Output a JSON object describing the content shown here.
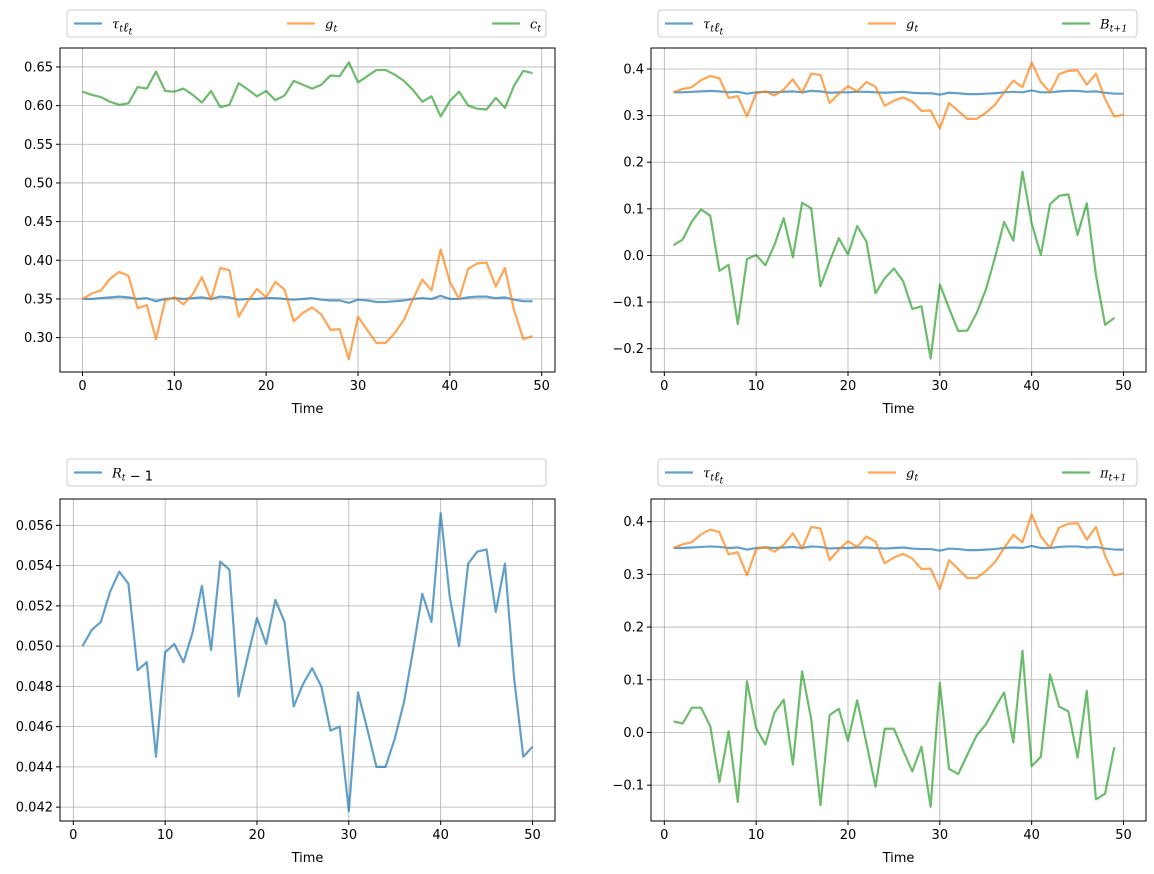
{
  "chart_data": [
    {
      "type": "line",
      "xlabel": "Time",
      "ylabel": "",
      "xlim": [
        -2.45,
        51.45
      ],
      "ylim": [
        0.2555,
        0.6745
      ],
      "xticks": [
        0,
        10,
        20,
        30,
        40,
        50
      ],
      "yticks": [
        0.3,
        0.35,
        0.4,
        0.45,
        0.5,
        0.55,
        0.6,
        0.65
      ],
      "ytick_decimals": 2,
      "grid": true,
      "legend": "above",
      "series": [
        {
          "name": "τtℓt",
          "color": "#1f77b4",
          "x_start": 0,
          "values": [
            0.35,
            0.35,
            0.351,
            0.352,
            0.353,
            0.352,
            0.35,
            0.351,
            0.347,
            0.35,
            0.351,
            0.35,
            0.351,
            0.352,
            0.35,
            0.353,
            0.352,
            0.349,
            0.35,
            0.35,
            0.351,
            0.351,
            0.35,
            0.349,
            0.35,
            0.351,
            0.349,
            0.348,
            0.348,
            0.345,
            0.349,
            0.348,
            0.346,
            0.346,
            0.347,
            0.348,
            0.35,
            0.351,
            0.35,
            0.354,
            0.35,
            0.35,
            0.352,
            0.353,
            0.353,
            0.351,
            0.352,
            0.349,
            0.347,
            0.347
          ]
        },
        {
          "name": "gt",
          "color": "#ff7f0e",
          "x_start": 0,
          "values": [
            0.35,
            0.357,
            0.361,
            0.376,
            0.385,
            0.38,
            0.338,
            0.342,
            0.298,
            0.348,
            0.352,
            0.343,
            0.356,
            0.378,
            0.349,
            0.39,
            0.387,
            0.327,
            0.347,
            0.363,
            0.352,
            0.372,
            0.362,
            0.321,
            0.332,
            0.339,
            0.33,
            0.31,
            0.311,
            0.272,
            0.327,
            0.31,
            0.293,
            0.293,
            0.306,
            0.323,
            0.35,
            0.375,
            0.361,
            0.414,
            0.372,
            0.35,
            0.389,
            0.396,
            0.397,
            0.366,
            0.39,
            0.335,
            0.298,
            0.302
          ]
        },
        {
          "name": "ct",
          "color": "#2ca02c",
          "x_start": 0,
          "values": [
            0.618,
            0.614,
            0.611,
            0.605,
            0.601,
            0.603,
            0.624,
            0.622,
            0.644,
            0.619,
            0.618,
            0.622,
            0.614,
            0.604,
            0.619,
            0.598,
            0.601,
            0.629,
            0.621,
            0.612,
            0.619,
            0.607,
            0.613,
            0.632,
            0.627,
            0.622,
            0.627,
            0.639,
            0.638,
            0.656,
            0.63,
            0.638,
            0.646,
            0.646,
            0.64,
            0.632,
            0.62,
            0.605,
            0.612,
            0.586,
            0.606,
            0.618,
            0.6,
            0.596,
            0.595,
            0.61,
            0.597,
            0.626,
            0.645,
            0.642
          ]
        }
      ]
    },
    {
      "type": "line",
      "xlabel": "Time",
      "ylabel": "",
      "xlim": [
        -1.45,
        52.45
      ],
      "ylim": [
        -0.25,
        0.445
      ],
      "xticks": [
        0,
        10,
        20,
        30,
        40,
        50
      ],
      "yticks": [
        -0.2,
        -0.1,
        0.0,
        0.1,
        0.2,
        0.3,
        0.4
      ],
      "ytick_decimals": 1,
      "grid": true,
      "legend": "above",
      "series": [
        {
          "name": "τtℓt",
          "color": "#1f77b4",
          "x_start": 1,
          "values": [
            0.35,
            0.35,
            0.351,
            0.352,
            0.353,
            0.352,
            0.35,
            0.351,
            0.347,
            0.35,
            0.351,
            0.35,
            0.351,
            0.352,
            0.35,
            0.353,
            0.352,
            0.349,
            0.35,
            0.35,
            0.351,
            0.351,
            0.35,
            0.349,
            0.35,
            0.351,
            0.349,
            0.348,
            0.348,
            0.345,
            0.349,
            0.348,
            0.346,
            0.346,
            0.347,
            0.348,
            0.35,
            0.351,
            0.35,
            0.354,
            0.35,
            0.35,
            0.352,
            0.353,
            0.353,
            0.351,
            0.352,
            0.349,
            0.347,
            0.347
          ]
        },
        {
          "name": "gt",
          "color": "#ff7f0e",
          "x_start": 1,
          "values": [
            0.35,
            0.357,
            0.361,
            0.376,
            0.385,
            0.38,
            0.338,
            0.342,
            0.298,
            0.348,
            0.352,
            0.343,
            0.356,
            0.378,
            0.349,
            0.39,
            0.387,
            0.327,
            0.347,
            0.363,
            0.352,
            0.372,
            0.362,
            0.321,
            0.332,
            0.339,
            0.33,
            0.31,
            0.311,
            0.272,
            0.327,
            0.31,
            0.293,
            0.293,
            0.306,
            0.323,
            0.35,
            0.375,
            0.361,
            0.414,
            0.372,
            0.35,
            0.389,
            0.396,
            0.397,
            0.366,
            0.39,
            0.335,
            0.298,
            0.302
          ]
        },
        {
          "name": "Bt+1",
          "color": "#2ca02c",
          "x_start": 1,
          "values": [
            0.022,
            0.034,
            0.073,
            0.099,
            0.085,
            -0.033,
            -0.02,
            -0.147,
            -0.008,
            0.001,
            -0.021,
            0.023,
            0.08,
            -0.004,
            0.113,
            0.101,
            -0.066,
            -0.013,
            0.037,
            0.002,
            0.063,
            0.03,
            -0.081,
            -0.049,
            -0.028,
            -0.055,
            -0.115,
            -0.109,
            -0.221,
            -0.062,
            -0.113,
            -0.162,
            -0.161,
            -0.124,
            -0.074,
            -0.005,
            0.072,
            0.032,
            0.18,
            0.069,
            0.001,
            0.11,
            0.128,
            0.131,
            0.044,
            0.112,
            -0.042,
            -0.149,
            -0.134
          ]
        }
      ]
    },
    {
      "type": "line",
      "xlabel": "Time",
      "ylabel": "",
      "xlim": [
        -1.45,
        52.45
      ],
      "ylim": [
        0.04131,
        0.05731
      ],
      "xticks": [
        0,
        10,
        20,
        30,
        40,
        50
      ],
      "yticks": [
        0.042,
        0.044,
        0.046,
        0.048,
        0.05,
        0.052,
        0.054,
        0.056
      ],
      "ytick_decimals": 3,
      "grid": true,
      "legend": "above",
      "series": [
        {
          "name": "Rt − 1",
          "color": "#1f77b4",
          "x_start": 1,
          "values": [
            0.05,
            0.0508,
            0.0512,
            0.0527,
            0.0537,
            0.0531,
            0.0488,
            0.0492,
            0.0445,
            0.0497,
            0.0501,
            0.0492,
            0.0507,
            0.053,
            0.0498,
            0.0542,
            0.0538,
            0.0475,
            0.0495,
            0.0514,
            0.0501,
            0.0523,
            0.0512,
            0.047,
            0.0481,
            0.0489,
            0.048,
            0.0458,
            0.046,
            0.0418,
            0.0477,
            0.0459,
            0.044,
            0.044,
            0.0454,
            0.0472,
            0.0498,
            0.0526,
            0.0512,
            0.0566,
            0.0524,
            0.05,
            0.0541,
            0.0547,
            0.0548,
            0.0517,
            0.0541,
            0.0484,
            0.0445,
            0.045
          ]
        }
      ]
    },
    {
      "type": "line",
      "xlabel": "Time",
      "ylabel": "",
      "xlim": [
        -1.45,
        52.45
      ],
      "ylim": [
        -0.168,
        0.443
      ],
      "xticks": [
        0,
        10,
        20,
        30,
        40,
        50
      ],
      "yticks": [
        -0.1,
        0.0,
        0.1,
        0.2,
        0.3,
        0.4
      ],
      "ytick_decimals": 1,
      "grid": true,
      "legend": "above",
      "series": [
        {
          "name": "τtℓt",
          "color": "#1f77b4",
          "x_start": 1,
          "values": [
            0.35,
            0.35,
            0.351,
            0.352,
            0.353,
            0.352,
            0.35,
            0.351,
            0.347,
            0.35,
            0.351,
            0.35,
            0.351,
            0.352,
            0.35,
            0.353,
            0.352,
            0.349,
            0.35,
            0.35,
            0.351,
            0.351,
            0.35,
            0.349,
            0.35,
            0.351,
            0.349,
            0.348,
            0.348,
            0.345,
            0.349,
            0.348,
            0.346,
            0.346,
            0.347,
            0.348,
            0.35,
            0.351,
            0.35,
            0.354,
            0.35,
            0.35,
            0.352,
            0.353,
            0.353,
            0.351,
            0.352,
            0.349,
            0.347,
            0.347
          ]
        },
        {
          "name": "gt",
          "color": "#ff7f0e",
          "x_start": 1,
          "values": [
            0.35,
            0.357,
            0.361,
            0.376,
            0.385,
            0.38,
            0.338,
            0.342,
            0.298,
            0.348,
            0.352,
            0.343,
            0.356,
            0.378,
            0.349,
            0.39,
            0.387,
            0.327,
            0.347,
            0.363,
            0.352,
            0.372,
            0.362,
            0.321,
            0.332,
            0.339,
            0.33,
            0.31,
            0.311,
            0.272,
            0.327,
            0.31,
            0.293,
            0.293,
            0.306,
            0.323,
            0.35,
            0.375,
            0.361,
            0.414,
            0.372,
            0.35,
            0.389,
            0.396,
            0.397,
            0.366,
            0.39,
            0.335,
            0.298,
            0.302
          ]
        },
        {
          "name": "πt+1",
          "color": "#2ca02c",
          "x_start": 1,
          "values": [
            0.021,
            0.017,
            0.047,
            0.047,
            0.012,
            -0.094,
            0.002,
            -0.132,
            0.097,
            0.008,
            -0.023,
            0.038,
            0.062,
            -0.061,
            0.116,
            0.025,
            -0.138,
            0.033,
            0.045,
            -0.016,
            0.061,
            -0.02,
            -0.103,
            0.007,
            0.007,
            -0.034,
            -0.074,
            -0.027,
            -0.141,
            0.094,
            -0.069,
            -0.079,
            -0.042,
            -0.006,
            0.015,
            0.046,
            0.076,
            -0.019,
            0.155,
            -0.064,
            -0.046,
            0.11,
            0.049,
            0.04,
            -0.048,
            0.079,
            -0.127,
            -0.116,
            -0.028
          ]
        }
      ]
    }
  ]
}
